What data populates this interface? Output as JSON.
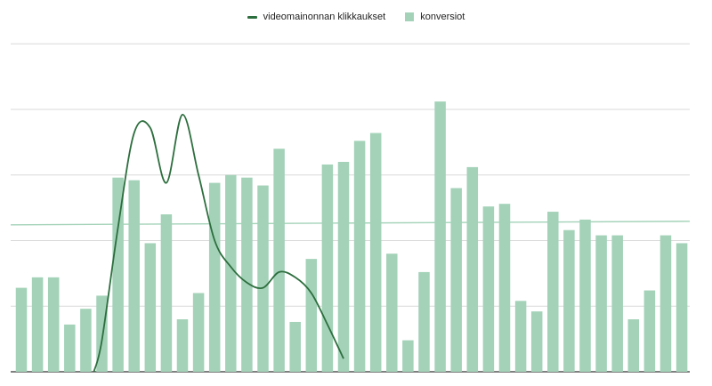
{
  "chart_data": {
    "type": "bar",
    "legend_position": "top-center",
    "grid": true,
    "ylim": [
      0,
      100
    ],
    "series": [
      {
        "name": "konversiot",
        "type": "bar",
        "color": "#a3d2b8",
        "values": [
          32,
          36,
          36,
          18,
          24,
          29,
          74,
          73,
          49,
          60,
          20,
          30,
          72,
          75,
          74,
          71,
          85,
          19,
          43,
          79,
          80,
          88,
          91,
          45,
          12,
          38,
          103,
          70,
          78,
          63,
          64,
          27,
          23,
          61,
          54,
          58,
          52,
          52,
          20,
          31,
          52,
          49
        ]
      },
      {
        "name": "videomainonnan klikkaukset",
        "type": "line",
        "color": "#2d6e3e",
        "points": [
          [
            4.5,
            0
          ],
          [
            5,
            12
          ],
          [
            6,
            55
          ],
          [
            7,
            91
          ],
          [
            8,
            93
          ],
          [
            9,
            72
          ],
          [
            10,
            98
          ],
          [
            11,
            75
          ],
          [
            12,
            50
          ],
          [
            13,
            40
          ],
          [
            14,
            34
          ],
          [
            15,
            32
          ],
          [
            16,
            38
          ],
          [
            17,
            36
          ],
          [
            18,
            30
          ],
          [
            19,
            18
          ],
          [
            20,
            5
          ]
        ]
      }
    ],
    "reference_line": {
      "value": 56,
      "color": "#a3d2b8"
    }
  }
}
